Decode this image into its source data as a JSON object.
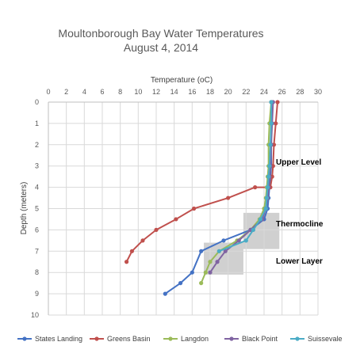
{
  "chart_data": {
    "type": "line",
    "title_line1": "Moultonborough Bay Water Temperatures",
    "title_line2": "August 4, 2014",
    "xlabel": "Temperature (oC)",
    "ylabel": "Depth (meters)",
    "xlim": [
      0,
      30
    ],
    "ylim": [
      0,
      10
    ],
    "x_ticks": [
      "0",
      "2",
      "4",
      "6",
      "8",
      "10",
      "12",
      "14",
      "16",
      "18",
      "20",
      "22",
      "24",
      "26",
      "28",
      "30"
    ],
    "y_ticks": [
      "0",
      "1",
      "2",
      "3",
      "4",
      "5",
      "6",
      "7",
      "8",
      "9",
      "10"
    ],
    "x_axis_position": "top",
    "y_axis_inverted": true,
    "grid": true,
    "legend_position": "bottom",
    "series": [
      {
        "name": "States Landing",
        "color": "#4472c4",
        "x": [
          24.8,
          24.8,
          24.8,
          24.8,
          24.7,
          24.6,
          24.5,
          24.4,
          24.0,
          22.5,
          19.5,
          17.0,
          16.0,
          14.7,
          13.0
        ],
        "y": [
          0,
          1,
          2,
          3,
          3.5,
          4,
          4.5,
          5,
          5.5,
          6,
          6.5,
          7,
          8,
          8.5,
          9
        ]
      },
      {
        "name": "Greens Basin",
        "color": "#c0504d",
        "x": [
          25.5,
          25.3,
          25.1,
          25.0,
          24.9,
          24.7,
          23.0,
          20.0,
          16.2,
          14.2,
          12.0,
          10.5,
          9.3,
          8.7
        ],
        "y": [
          0,
          1,
          2,
          3,
          3.5,
          4,
          4,
          4.5,
          5,
          5.5,
          6,
          6.5,
          7,
          7.5
        ]
      },
      {
        "name": "Langdon",
        "color": "#9bbb59",
        "x": [
          24.8,
          24.6,
          24.5,
          24.5,
          24.4,
          24.3,
          24.2,
          24.0,
          23.5,
          22.5,
          21.0,
          19.0,
          18.0,
          17.5,
          17.0
        ],
        "y": [
          0,
          1,
          2,
          3,
          3.5,
          4,
          4.5,
          5,
          5.5,
          6,
          6.5,
          7,
          7.5,
          8,
          8.5
        ]
      },
      {
        "name": "Black Point",
        "color": "#8064a2",
        "x": [
          25.0,
          24.9,
          24.8,
          24.7,
          24.6,
          24.5,
          24.4,
          24.2,
          23.8,
          22.5,
          21.2,
          19.7,
          18.8,
          18.0
        ],
        "y": [
          0,
          1,
          2,
          3,
          3.5,
          4,
          4.5,
          5,
          5.5,
          6,
          6.5,
          7,
          7.5,
          8
        ]
      },
      {
        "name": "Suissevale",
        "color": "#4bacc6",
        "x": [
          24.8,
          24.8,
          24.7,
          24.6,
          24.5,
          24.4,
          24.3,
          24.2,
          23.6,
          22.8,
          22.0,
          19.0
        ],
        "y": [
          0,
          1,
          2,
          3,
          3.5,
          4,
          4.5,
          5,
          5.5,
          6,
          6.5,
          7
        ]
      }
    ],
    "annotations": [
      {
        "text": "Upper Level"
      },
      {
        "text": "Thermocline"
      },
      {
        "text": "Lower Layer"
      }
    ]
  }
}
